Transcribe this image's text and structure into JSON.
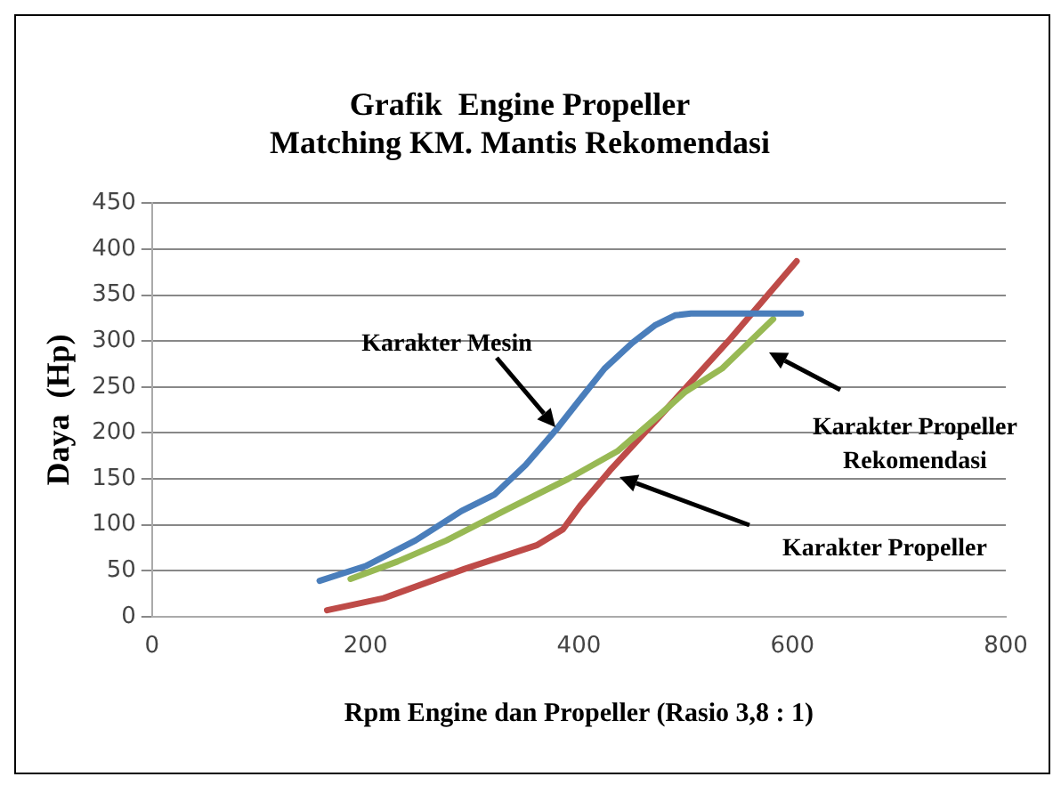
{
  "chart_data": {
    "type": "line",
    "title": "Grafik  Engine Propeller\nMatching KM. Mantis Rekomendasi",
    "xlabel": "Rpm Engine dan Propeller (Rasio 3,8 : 1)",
    "ylabel": "Daya  (Hp)",
    "xlim": [
      0,
      800
    ],
    "xticks": [
      0,
      200,
      400,
      600,
      800
    ],
    "ylim": [
      0,
      450
    ],
    "yticks": [
      0,
      50,
      100,
      150,
      200,
      250,
      300,
      350,
      400,
      450
    ],
    "grid": "y",
    "legend": false,
    "marker": "none",
    "line_style": "solid",
    "series": [
      {
        "color": "#4a7ebb",
        "x": [
          157,
          200,
          247,
          290,
          321,
          350,
          379,
          400,
          424,
          450,
          471,
          490,
          505,
          540,
          608
        ],
        "values": [
          39,
          55,
          83,
          115,
          133,
          165,
          204,
          235,
          270,
          298,
          317,
          328,
          330,
          330,
          330
        ]
      },
      {
        "color": "#98b954",
        "x": [
          186,
          230,
          276,
          333,
          390,
          436,
          476,
          500,
          534,
          582
        ],
        "values": [
          41,
          60,
          83,
          117,
          150,
          180,
          220,
          245,
          270,
          324
        ]
      },
      {
        "color": "#be4b48",
        "x": [
          164,
          217,
          293,
          361,
          385,
          402,
          429,
          482,
          540,
          604
        ],
        "values": [
          7,
          20,
          52,
          78,
          95,
          122,
          159,
          226,
          300,
          387
        ]
      }
    ],
    "annotations": [
      "Karakter Mesin",
      "Karakter Propeller",
      "Karakter Propeller\nRekomendasi"
    ]
  }
}
